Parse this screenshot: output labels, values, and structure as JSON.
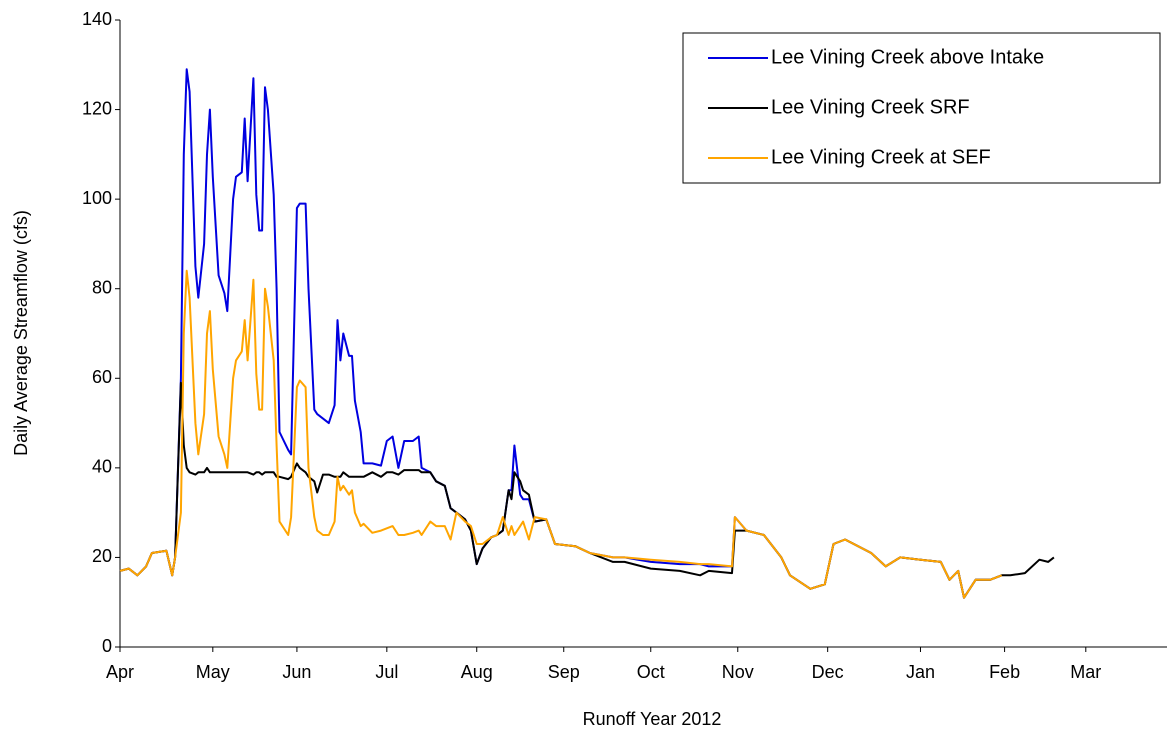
{
  "chart_data": {
    "type": "line",
    "xlabel": "Runoff Year 2012",
    "ylabel": "Daily Average Streamflow (cfs)",
    "x": [
      0,
      3,
      6,
      9,
      11,
      16,
      18,
      19,
      21,
      22,
      23,
      24,
      26,
      27,
      29,
      30,
      31,
      32,
      34,
      36,
      37,
      39,
      40,
      42,
      43,
      44,
      46,
      47,
      48,
      49,
      50,
      51,
      53,
      54,
      55,
      58,
      59,
      61,
      62,
      64,
      65,
      67,
      68,
      70,
      72,
      74,
      75,
      76,
      77,
      79,
      80,
      81,
      83,
      84,
      87,
      90,
      92,
      94,
      96,
      98,
      101,
      103,
      104,
      107,
      109,
      112,
      114,
      116,
      119,
      121,
      123,
      125,
      128,
      130,
      132,
      134,
      135,
      136,
      138,
      139,
      141,
      143,
      147,
      150,
      157,
      162,
      170,
      174,
      183,
      193,
      200,
      203,
      211,
      212,
      216,
      222,
      228,
      231,
      238,
      243,
      246,
      250,
      259,
      264,
      269,
      276,
      283,
      286,
      289,
      291,
      295,
      300,
      304,
      307,
      312,
      317,
      320,
      322
    ],
    "series": [
      {
        "name": "Lee Vining Creek above Intake",
        "color": "#0000e0",
        "values": [
          17,
          17.5,
          16,
          18,
          21,
          21.5,
          16,
          20,
          60,
          110,
          129,
          124,
          85,
          78,
          90,
          110,
          120,
          105,
          83,
          79,
          75,
          100,
          105,
          106,
          118,
          104,
          127,
          101,
          93,
          93,
          125,
          120,
          101,
          80,
          48,
          44,
          43,
          98,
          99,
          99,
          80,
          53,
          52,
          51,
          50,
          54,
          73,
          64,
          70,
          65,
          65,
          55,
          48,
          41,
          41,
          40.5,
          46,
          47,
          40,
          46,
          46,
          47,
          40,
          39,
          37,
          36,
          31,
          30,
          28.5,
          26,
          18.5,
          22,
          24.5,
          25,
          26,
          35,
          35,
          45,
          34,
          33,
          33,
          28,
          28.5,
          23,
          22.5,
          21,
          20,
          20,
          19,
          18.5,
          18.5,
          18,
          18,
          29,
          26,
          25,
          20,
          16,
          13,
          14,
          23,
          24,
          21,
          18,
          20,
          19.5,
          19,
          15,
          17,
          11,
          15,
          15,
          16,
          null,
          null,
          null,
          null,
          null
        ]
      },
      {
        "name": "Lee Vining Creek SRF",
        "color": "#000000",
        "values": [
          17,
          17.5,
          16,
          18,
          21,
          21.5,
          16,
          20,
          59,
          45,
          40,
          39,
          38.5,
          39,
          39,
          40,
          39,
          39,
          39,
          39,
          39,
          39,
          39,
          39,
          39,
          39,
          38.5,
          39,
          39,
          38.5,
          39,
          39,
          39,
          38,
          38,
          37.5,
          38,
          41,
          40,
          39,
          38,
          37,
          34.5,
          38.5,
          38.5,
          38,
          38,
          38,
          39,
          38,
          38,
          38,
          38,
          38,
          39,
          38,
          39,
          39,
          38.5,
          39.5,
          39.5,
          39.5,
          39,
          39,
          37,
          36,
          31,
          30,
          28.5,
          26,
          18.5,
          22,
          24.5,
          25,
          26,
          35,
          33,
          39,
          37,
          35,
          34,
          28,
          28.5,
          23,
          22.5,
          21,
          19,
          19,
          17.5,
          17,
          16,
          17,
          16.5,
          26,
          26,
          25,
          20,
          16,
          13,
          14,
          23,
          24,
          21,
          18,
          20,
          19.5,
          19,
          15,
          17,
          11,
          15,
          15,
          16,
          16,
          16.5,
          19.5,
          19,
          20
        ]
      },
      {
        "name": "Lee Vining Creek at SEF",
        "color": "#ffa500",
        "values": [
          17,
          17.5,
          16,
          18,
          21,
          21.5,
          16,
          20,
          30,
          70,
          84,
          78,
          50,
          43,
          52,
          70,
          75,
          62,
          47,
          43,
          40,
          60,
          64,
          66,
          73,
          64,
          82,
          61,
          53,
          53,
          80,
          76,
          64,
          45,
          28,
          25,
          29,
          58,
          59.5,
          58,
          40,
          29,
          26,
          25,
          25,
          28,
          38,
          35,
          36,
          34,
          35,
          30,
          27,
          27.5,
          25.5,
          26,
          26.5,
          27,
          25,
          25,
          25.5,
          26,
          25,
          28,
          27,
          27,
          24,
          30,
          28,
          27,
          23,
          23,
          24.5,
          25,
          29,
          25,
          27,
          25,
          27,
          28,
          24,
          29,
          28.5,
          23,
          22.5,
          21,
          20,
          20,
          19.5,
          19,
          18.5,
          18.5,
          18,
          29,
          26,
          25,
          20,
          16,
          13,
          14,
          23,
          24,
          21,
          18,
          20,
          19.5,
          19,
          15,
          17,
          11,
          15,
          15,
          16,
          null,
          null,
          null,
          null,
          null
        ]
      }
    ],
    "xlim": [
      0,
      361
    ],
    "xticks": [
      {
        "value": 0,
        "label": "Apr"
      },
      {
        "value": 32,
        "label": "May"
      },
      {
        "value": 61,
        "label": "Jun"
      },
      {
        "value": 92,
        "label": "Jul"
      },
      {
        "value": 123,
        "label": "Aug"
      },
      {
        "value": 153,
        "label": "Sep"
      },
      {
        "value": 183,
        "label": "Oct"
      },
      {
        "value": 213,
        "label": "Nov"
      },
      {
        "value": 244,
        "label": "Dec"
      },
      {
        "value": 276,
        "label": "Jan"
      },
      {
        "value": 305,
        "label": "Feb"
      },
      {
        "value": 333,
        "label": "Mar"
      }
    ],
    "ylim": [
      0,
      140
    ],
    "yticks": [
      0,
      20,
      40,
      60,
      80,
      100,
      120,
      140
    ],
    "grid": false,
    "legend": "upper right"
  }
}
